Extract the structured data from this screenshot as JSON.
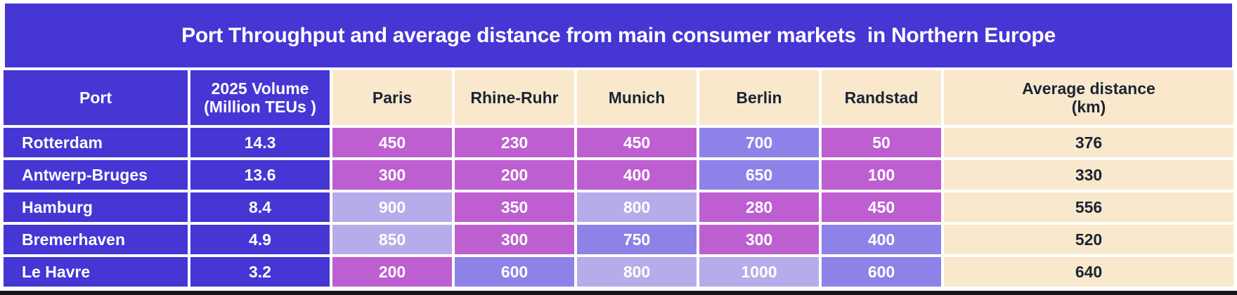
{
  "title": "Port Throughput and average distance from main consumer markets  in Northern Europe",
  "palette": {
    "banner_blue": "#4636d4",
    "cream": "#fae8cd",
    "magenta": "#bd5fd0",
    "periwinkle": "#8e82e8",
    "lavender": "#b7ace9",
    "navy_text": "#1a2433",
    "white_text": "#ffffff",
    "bottom_bar": "#17171c"
  },
  "headers": [
    "Port",
    "2025 Volume\n(Million TEUs )",
    "Paris",
    "Rhine-Ruhr",
    "Munich",
    "Berlin",
    "Randstad",
    "Average distance\n(km)"
  ],
  "chart_data": {
    "type": "table",
    "title": "Port Throughput and average distance from main consumer markets in Northern Europe",
    "columns": [
      "Port",
      "2025 Volume (Million TEUs )",
      "Paris",
      "Rhine-Ruhr",
      "Munich",
      "Berlin",
      "Randstad",
      "Average distance (km)"
    ],
    "rows": [
      [
        "Rotterdam",
        14.3,
        450,
        230,
        450,
        700,
        50,
        376
      ],
      [
        "Antwerp-Bruges",
        13.6,
        300,
        200,
        400,
        650,
        100,
        330
      ],
      [
        "Hamburg",
        8.4,
        900,
        350,
        800,
        280,
        450,
        556
      ],
      [
        "Bremerhaven",
        4.9,
        850,
        300,
        750,
        300,
        400,
        520
      ],
      [
        "Le Havre",
        3.2,
        200,
        600,
        800,
        1000,
        600,
        640
      ]
    ],
    "notes": "Distance cells are heat-colored: magenta = short, periwinkle = medium, lavender = long"
  },
  "tones": [
    [
      "magenta",
      "magenta",
      "magenta",
      "periwinkle",
      "magenta"
    ],
    [
      "magenta",
      "magenta",
      "magenta",
      "periwinkle",
      "magenta"
    ],
    [
      "lavender",
      "magenta",
      "lavender",
      "magenta",
      "magenta"
    ],
    [
      "lavender",
      "magenta",
      "periwinkle",
      "magenta",
      "periwinkle"
    ],
    [
      "magenta",
      "periwinkle",
      "lavender",
      "lavender",
      "periwinkle"
    ]
  ]
}
